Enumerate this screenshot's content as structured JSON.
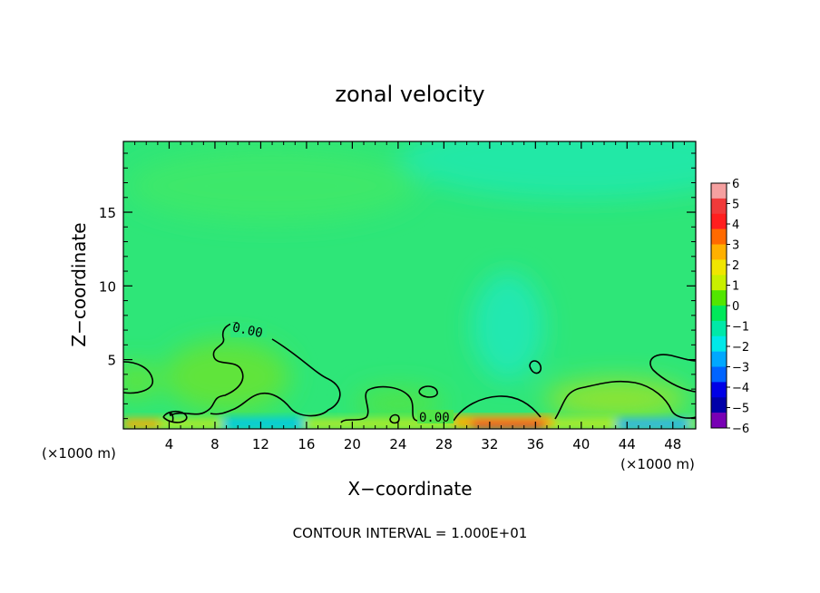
{
  "chart_data": {
    "type": "heatmap",
    "title": "zonal velocity",
    "xlabel": "X−coordinate",
    "ylabel": "Z−coordinate",
    "x_unit_left": "(×1000 m)",
    "x_unit_right": "(×1000 m)",
    "xlim": [
      0,
      50
    ],
    "ylim": [
      0.3,
      19.8
    ],
    "xticks": [
      4,
      8,
      12,
      16,
      20,
      24,
      28,
      32,
      36,
      40,
      44,
      48
    ],
    "yticks": [
      5,
      10,
      15
    ],
    "footer": "CONTOUR INTERVAL = 1.000E+01",
    "contour_labels": [
      "0.00",
      "0.00"
    ],
    "colorbar": {
      "levels": [
        6,
        5,
        4,
        3,
        2,
        1,
        0,
        -1,
        -2,
        -3,
        -4,
        -5,
        -6
      ],
      "labels": [
        "6",
        "5",
        "4",
        "3",
        "2",
        "1",
        "0",
        "−1",
        "−2",
        "−3",
        "−4",
        "−5",
        "−6"
      ],
      "colors": [
        "#f5a0a0",
        "#f03a3a",
        "#ff1e1e",
        "#ff6a00",
        "#ffb000",
        "#f0e600",
        "#c8f000",
        "#52e600",
        "#00e85a",
        "#00e8a8",
        "#00e8e8",
        "#00a8ff",
        "#0064ff",
        "#0000e6",
        "#0000a8",
        "#7800b4"
      ]
    },
    "grid": false
  }
}
